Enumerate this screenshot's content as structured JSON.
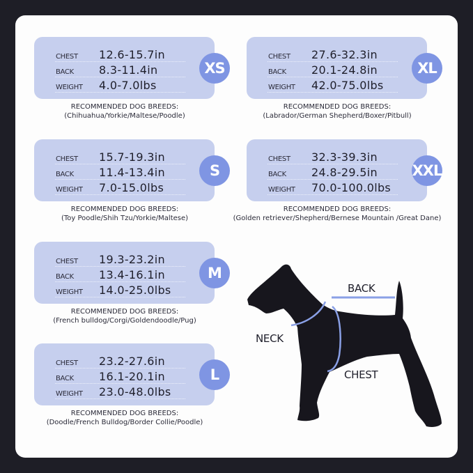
{
  "labels": {
    "chest": "CHEST",
    "back": "BACK",
    "weight": "WEIGHT",
    "breeds_heading": "RECOMMENDED DOG BREEDS:"
  },
  "colors": {
    "card": "#c6cfee",
    "badge": "#7f95e3",
    "background": "#1e1e26",
    "dog": "#17161d"
  },
  "sizes": [
    {
      "size": "XS",
      "chest": "12.6-15.7in",
      "back": "8.3-11.4in",
      "weight": "4.0-7.0lbs",
      "breeds": "(Chihuahua/Yorkie/Maltese/Poodle)"
    },
    {
      "size": "XL",
      "chest": "27.6-32.3in",
      "back": "20.1-24.8in",
      "weight": "42.0-75.0lbs",
      "breeds": "(Labrador/German Shepherd/Boxer/Pitbull)"
    },
    {
      "size": "S",
      "chest": "15.7-19.3in",
      "back": "11.4-13.4in",
      "weight": "7.0-15.0lbs",
      "breeds": "(Toy Poodle/Shih Tzu/Yorkie/Maltese)"
    },
    {
      "size": "XXL",
      "chest": "32.3-39.3in",
      "back": "24.8-29.5in",
      "weight": "70.0-100.0lbs",
      "breeds": "(Golden retriever/Shepherd/Bernese Mountain /Great Dane)"
    },
    {
      "size": "M",
      "chest": "19.3-23.2in",
      "back": "13.4-16.1in",
      "weight": "14.0-25.0lbs",
      "breeds": "(French bulldog/Corgi/Goldendoodle/Pug)"
    },
    {
      "size": "L",
      "chest": "23.2-27.6in",
      "back": "16.1-20.1in",
      "weight": "23.0-48.0lbs",
      "breeds": "(Doodle/French Bulldog/Border Collie/Poodle)"
    }
  ],
  "diagram": {
    "back": "BACK",
    "neck": "NECK",
    "chest": "CHEST"
  }
}
